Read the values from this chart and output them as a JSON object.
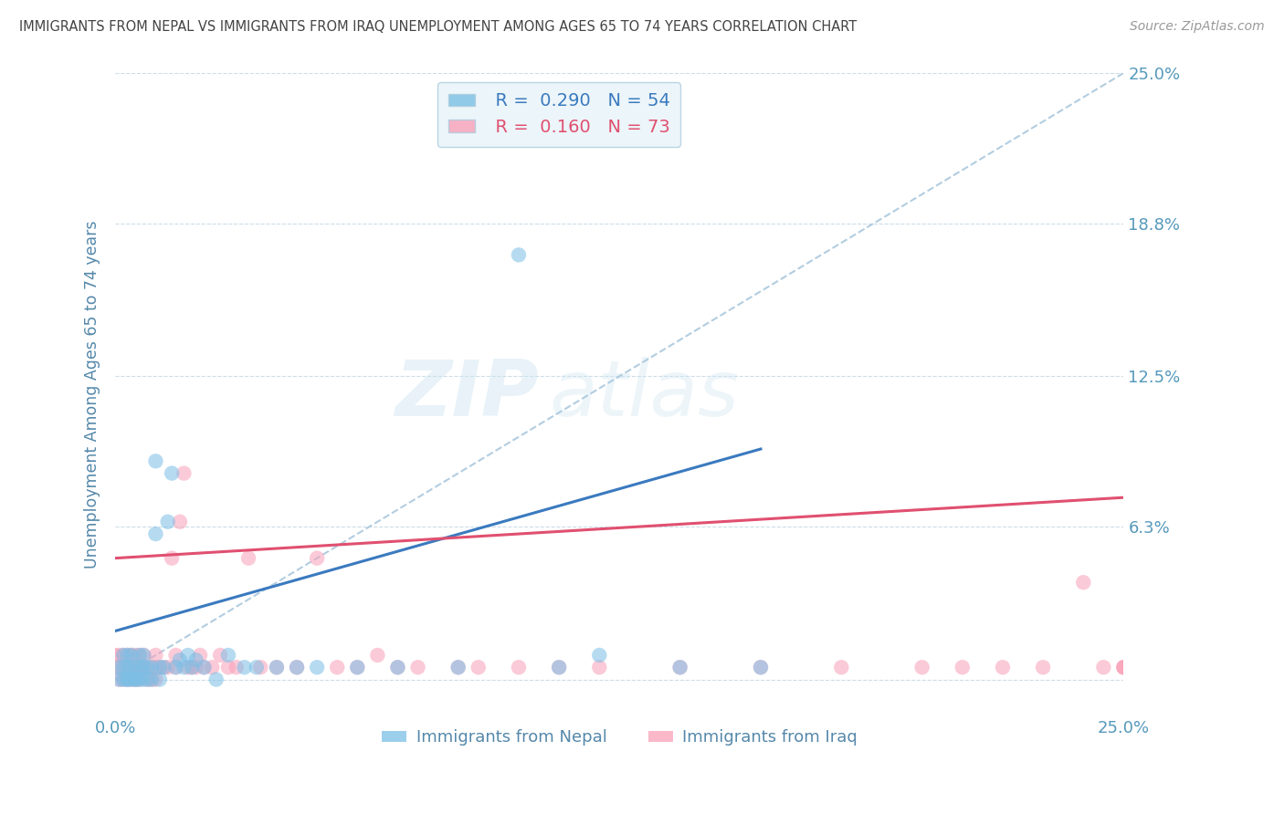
{
  "title": "IMMIGRANTS FROM NEPAL VS IMMIGRANTS FROM IRAQ UNEMPLOYMENT AMONG AGES 65 TO 74 YEARS CORRELATION CHART",
  "source": "Source: ZipAtlas.com",
  "ylabel": "Unemployment Among Ages 65 to 74 years",
  "xlim": [
    0.0,
    0.25
  ],
  "ylim": [
    -0.015,
    0.25
  ],
  "yticks": [
    0.0,
    0.063,
    0.125,
    0.188,
    0.25
  ],
  "ytick_labels": [
    "",
    "6.3%",
    "12.5%",
    "18.8%",
    "25.0%"
  ],
  "xtick_labels": [
    "0.0%",
    "25.0%"
  ],
  "nepal_R": 0.29,
  "nepal_N": 54,
  "iraq_R": 0.16,
  "iraq_N": 73,
  "nepal_color": "#7bbfe6",
  "iraq_color": "#f9a0b8",
  "nepal_line_color": "#3a7abf",
  "iraq_line_color": "#e05070",
  "ref_line_color": "#aac8dd",
  "title_color": "#444444",
  "axis_label_color": "#5588aa",
  "tick_label_color": "#5599bb",
  "watermark_color": "#cce4f0",
  "nepal_x": [
    0.001,
    0.001,
    0.002,
    0.002,
    0.002,
    0.003,
    0.003,
    0.003,
    0.003,
    0.004,
    0.004,
    0.004,
    0.005,
    0.005,
    0.005,
    0.006,
    0.006,
    0.006,
    0.007,
    0.007,
    0.007,
    0.008,
    0.008,
    0.009,
    0.009,
    0.01,
    0.01,
    0.011,
    0.011,
    0.012,
    0.013,
    0.014,
    0.015,
    0.016,
    0.017,
    0.018,
    0.019,
    0.02,
    0.022,
    0.025,
    0.028,
    0.032,
    0.035,
    0.04,
    0.045,
    0.05,
    0.06,
    0.07,
    0.085,
    0.1,
    0.11,
    0.12,
    0.14,
    0.16
  ],
  "nepal_y": [
    0.0,
    0.005,
    0.0,
    0.005,
    0.01,
    0.0,
    0.005,
    0.01,
    0.0,
    0.0,
    0.005,
    0.01,
    0.0,
    0.005,
    0.0,
    0.0,
    0.005,
    0.01,
    0.0,
    0.005,
    0.01,
    0.0,
    0.005,
    0.0,
    0.005,
    0.06,
    0.09,
    0.005,
    0.0,
    0.005,
    0.065,
    0.085,
    0.005,
    0.008,
    0.005,
    0.01,
    0.005,
    0.008,
    0.005,
    0.0,
    0.01,
    0.005,
    0.005,
    0.005,
    0.005,
    0.005,
    0.005,
    0.005,
    0.005,
    0.175,
    0.005,
    0.01,
    0.005,
    0.005
  ],
  "iraq_x": [
    0.0,
    0.0,
    0.001,
    0.001,
    0.001,
    0.002,
    0.002,
    0.002,
    0.003,
    0.003,
    0.003,
    0.004,
    0.004,
    0.004,
    0.005,
    0.005,
    0.005,
    0.006,
    0.006,
    0.006,
    0.007,
    0.007,
    0.008,
    0.008,
    0.009,
    0.009,
    0.01,
    0.01,
    0.01,
    0.011,
    0.012,
    0.013,
    0.014,
    0.015,
    0.015,
    0.016,
    0.017,
    0.018,
    0.019,
    0.02,
    0.021,
    0.022,
    0.024,
    0.026,
    0.028,
    0.03,
    0.033,
    0.036,
    0.04,
    0.045,
    0.05,
    0.055,
    0.06,
    0.065,
    0.07,
    0.075,
    0.085,
    0.09,
    0.1,
    0.11,
    0.12,
    0.14,
    0.16,
    0.18,
    0.2,
    0.21,
    0.22,
    0.23,
    0.24,
    0.245,
    0.25,
    0.25,
    0.25
  ],
  "iraq_y": [
    0.005,
    0.01,
    0.0,
    0.005,
    0.01,
    0.0,
    0.005,
    0.01,
    0.0,
    0.005,
    0.01,
    0.0,
    0.005,
    0.01,
    0.0,
    0.005,
    0.01,
    0.0,
    0.005,
    0.01,
    0.005,
    0.01,
    0.0,
    0.005,
    0.0,
    0.005,
    0.0,
    0.005,
    0.01,
    0.005,
    0.005,
    0.005,
    0.05,
    0.005,
    0.01,
    0.065,
    0.085,
    0.005,
    0.005,
    0.005,
    0.01,
    0.005,
    0.005,
    0.01,
    0.005,
    0.005,
    0.05,
    0.005,
    0.005,
    0.005,
    0.05,
    0.005,
    0.005,
    0.01,
    0.005,
    0.005,
    0.005,
    0.005,
    0.005,
    0.005,
    0.005,
    0.005,
    0.005,
    0.005,
    0.005,
    0.005,
    0.005,
    0.005,
    0.04,
    0.005,
    0.005,
    0.005,
    0.005
  ],
  "nepal_line_x": [
    0.0,
    0.16
  ],
  "iraq_line_x": [
    0.0,
    0.25
  ],
  "nepal_line_y_start": 0.02,
  "nepal_line_y_end": 0.095,
  "iraq_line_y_start": 0.05,
  "iraq_line_y_end": 0.075
}
